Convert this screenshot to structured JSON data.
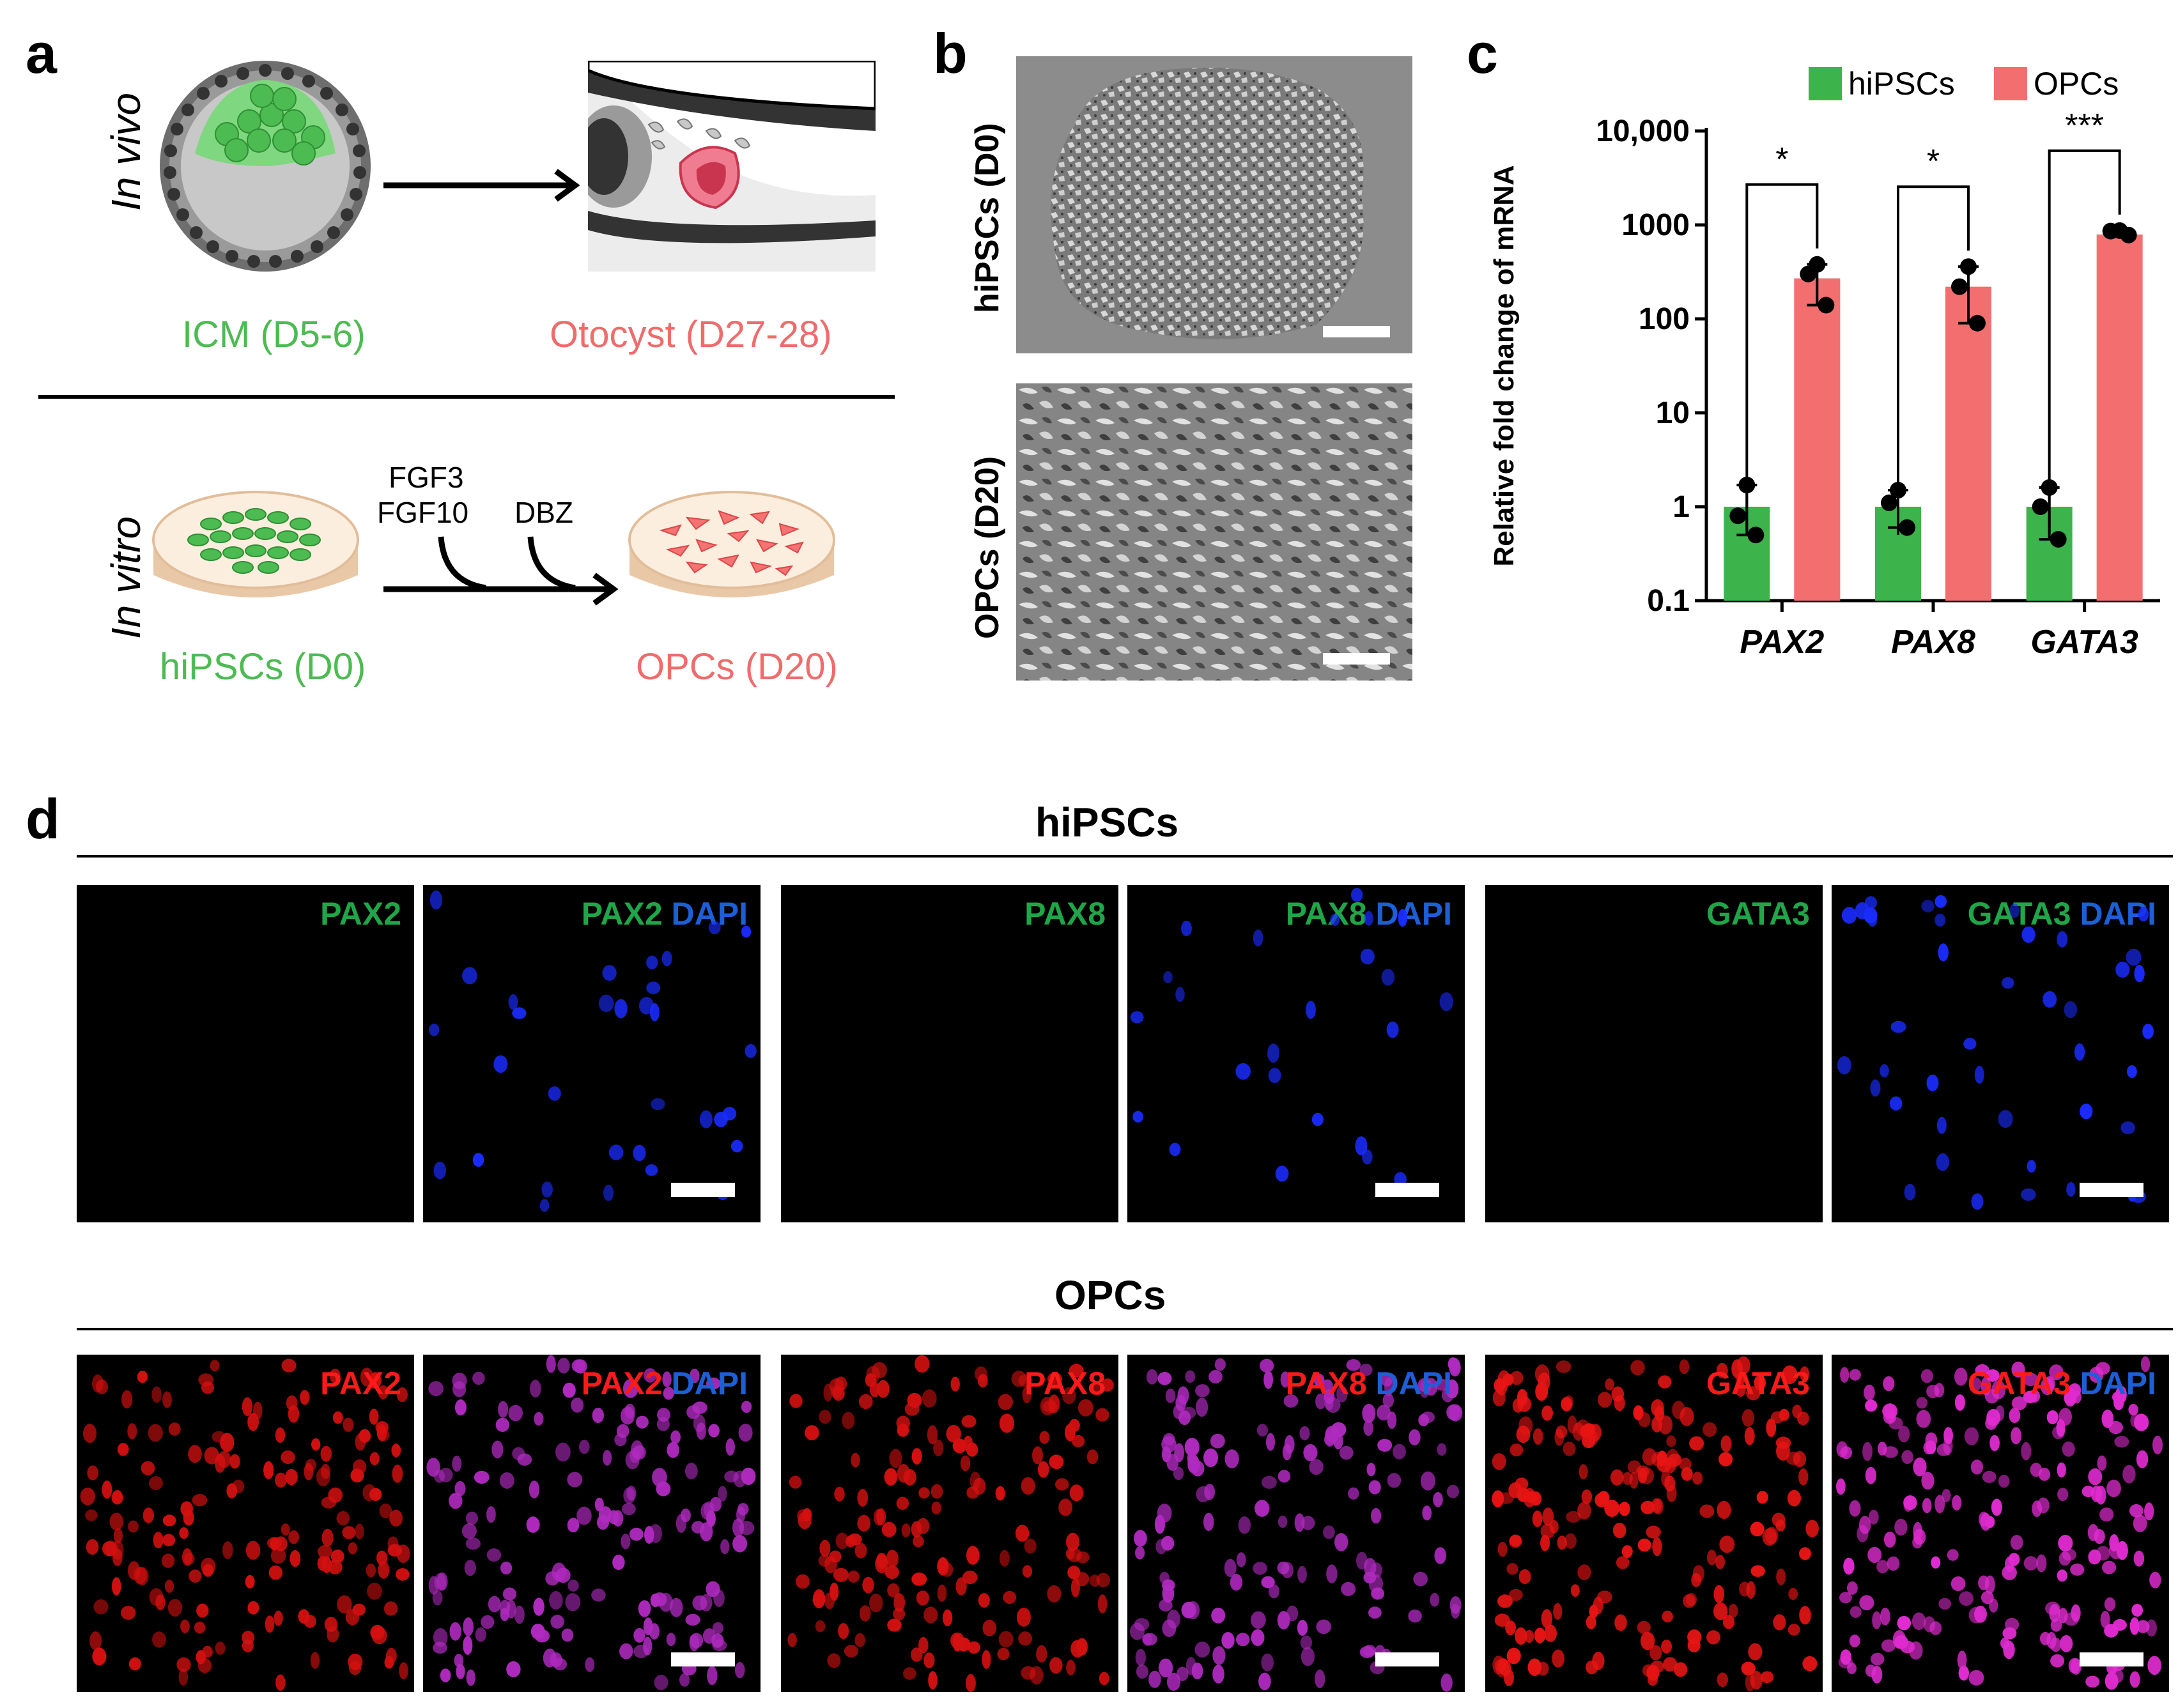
{
  "panels": {
    "a": "a",
    "b": "b",
    "c": "c",
    "d": "d"
  },
  "panel_a": {
    "in_vivo": "In vivo",
    "in_vitro": "In vitro",
    "icm": "ICM (D5-6)",
    "otocyst": "Otocyst (D27-28)",
    "hipscs": "hiPSCs (D0)",
    "opcs": "OPCs (D20)",
    "fgf3": "FGF3",
    "fgf10": "FGF10",
    "dbz": "DBZ"
  },
  "panel_b": {
    "top_label": "hiPSCs (D0)",
    "bottom_label": "OPCs (D20)"
  },
  "chart_data": {
    "type": "bar",
    "categories": [
      "PAX2",
      "PAX8",
      "GATA3"
    ],
    "series": [
      {
        "name": "hiPSCs",
        "values": [
          1,
          1,
          1
        ],
        "points": [
          [
            1.7,
            0.8,
            0.5
          ],
          [
            1.5,
            1.1,
            0.6
          ],
          [
            1.6,
            1.0,
            0.45
          ]
        ],
        "color": "#3cb44b"
      },
      {
        "name": "OPCs",
        "values": [
          270,
          220,
          790
        ],
        "points": [
          [
            380,
            300,
            140
          ],
          [
            360,
            220,
            90
          ],
          [
            870,
            860,
            780
          ]
        ],
        "color": "#f36f6f"
      }
    ],
    "ylabel": "Relative fold change of mRNA",
    "yscale": "log",
    "ylim": [
      0.1,
      10000
    ],
    "yticks": [
      "0.1",
      "1",
      "10",
      "100",
      "1000",
      "10,000"
    ],
    "significance": [
      "*",
      "*",
      "***"
    ],
    "legend": "top"
  },
  "panel_d": {
    "row1_title": "hiPSCs",
    "row2_title": "OPCs",
    "markers": [
      "PAX2",
      "PAX8",
      "GATA3"
    ],
    "dapi": "DAPI"
  }
}
